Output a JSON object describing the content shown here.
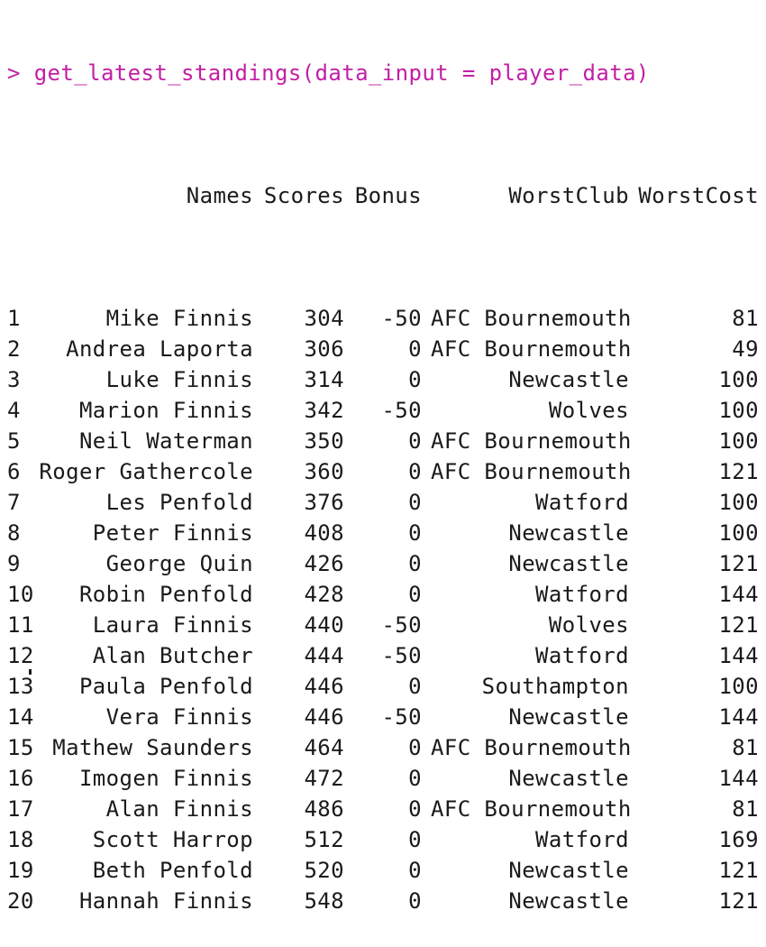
{
  "console": {
    "prompt": "> ",
    "command": "get_latest_standings(data_input = player_data)"
  },
  "table": {
    "headers": {
      "names": "Names",
      "scores": "Scores",
      "bonus": "Bonus",
      "worst_club": "WorstClub",
      "worst_cost": "WorstCost"
    },
    "rows": [
      {
        "idx": "1",
        "name": "Mike Finnis",
        "score": "304",
        "bonus": "-50",
        "club": "AFC Bournemouth",
        "cost": "81"
      },
      {
        "idx": "2",
        "name": "Andrea Laporta",
        "score": "306",
        "bonus": "0",
        "club": "AFC Bournemouth",
        "cost": "49"
      },
      {
        "idx": "3",
        "name": "Luke Finnis",
        "score": "314",
        "bonus": "0",
        "club": "Newcastle",
        "cost": "100"
      },
      {
        "idx": "4",
        "name": "Marion Finnis",
        "score": "342",
        "bonus": "-50",
        "club": "Wolves",
        "cost": "100"
      },
      {
        "idx": "5",
        "name": "Neil Waterman",
        "score": "350",
        "bonus": "0",
        "club": "AFC Bournemouth",
        "cost": "100"
      },
      {
        "idx": "6",
        "name": "Roger Gathercole",
        "score": "360",
        "bonus": "0",
        "club": "AFC Bournemouth",
        "cost": "121"
      },
      {
        "idx": "7",
        "name": "Les Penfold",
        "score": "376",
        "bonus": "0",
        "club": "Watford",
        "cost": "100"
      },
      {
        "idx": "8",
        "name": "Peter Finnis",
        "score": "408",
        "bonus": "0",
        "club": "Newcastle",
        "cost": "100"
      },
      {
        "idx": "9",
        "name": "George Quin",
        "score": "426",
        "bonus": "0",
        "club": "Newcastle",
        "cost": "121"
      },
      {
        "idx": "10",
        "name": "Robin Penfold",
        "score": "428",
        "bonus": "0",
        "club": "Watford",
        "cost": "144"
      },
      {
        "idx": "11",
        "name": "Laura Finnis",
        "score": "440",
        "bonus": "-50",
        "club": "Wolves",
        "cost": "121"
      },
      {
        "idx": "12",
        "name": "Alan Butcher",
        "score": "444",
        "bonus": "-50",
        "club": "Watford",
        "cost": "144"
      },
      {
        "idx": "13",
        "name": "Paula Penfold",
        "score": "446",
        "bonus": "0",
        "club": "Southampton",
        "cost": "100"
      },
      {
        "idx": "14",
        "name": "Vera Finnis",
        "score": "446",
        "bonus": "-50",
        "club": "Newcastle",
        "cost": "144"
      },
      {
        "idx": "15",
        "name": "Mathew Saunders",
        "score": "464",
        "bonus": "0",
        "club": "AFC Bournemouth",
        "cost": "81"
      },
      {
        "idx": "16",
        "name": "Imogen Finnis",
        "score": "472",
        "bonus": "0",
        "club": "Newcastle",
        "cost": "144"
      },
      {
        "idx": "17",
        "name": "Alan Finnis",
        "score": "486",
        "bonus": "0",
        "club": "AFC Bournemouth",
        "cost": "81"
      },
      {
        "idx": "18",
        "name": "Scott Harrop",
        "score": "512",
        "bonus": "0",
        "club": "Watford",
        "cost": "169"
      },
      {
        "idx": "19",
        "name": "Beth Penfold",
        "score": "520",
        "bonus": "0",
        "club": "Newcastle",
        "cost": "121"
      },
      {
        "idx": "20",
        "name": "Hannah Finnis",
        "score": "548",
        "bonus": "0",
        "club": "Newcastle",
        "cost": "121"
      }
    ]
  },
  "colors": {
    "command": "#c21fa5",
    "output": "#1a1a1a",
    "background": "#ffffff"
  }
}
